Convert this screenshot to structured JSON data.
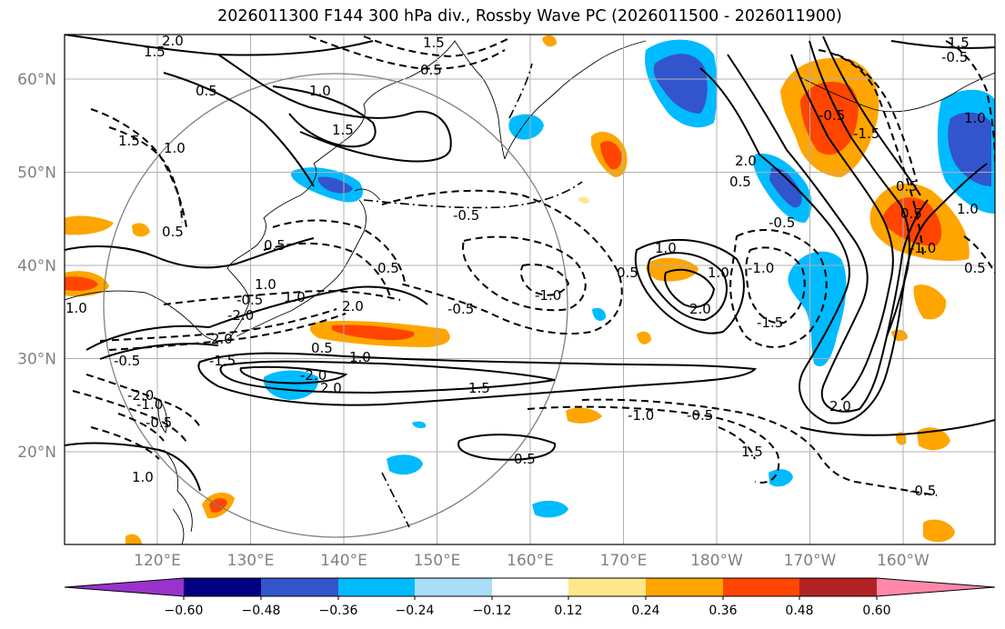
{
  "title": "2026011300 F144 300 hPa div., Rossby Wave PC (2026011500 - 2026011900)",
  "map": {
    "lon_labels": [
      "120°E",
      "130°E",
      "140°E",
      "150°E",
      "160°E",
      "170°E",
      "180°W",
      "170°W",
      "160°W"
    ],
    "lat_labels": [
      "60°N",
      "50°N",
      "40°N",
      "30°N",
      "20°N"
    ],
    "contour_labels": [
      "2.0",
      "1.5",
      "1.5",
      "0.5",
      "1.0",
      "0.5",
      "1.5",
      "1.5",
      "1.0",
      "1.5",
      "0.5",
      "0.5",
      "0.5",
      "1.0",
      "1.0",
      "2.0",
      "2.0",
      "0.5",
      "1.0",
      "-0.5",
      "0.5",
      "-1.0",
      "-0.5",
      "1.0",
      "2.0",
      "1.0",
      "-1.5",
      "-1.0",
      "-0.5",
      "0.5",
      "1.0",
      "-1.0",
      "2.0",
      "-0.5",
      "1.5",
      "2.0",
      "-0.5",
      "-2.0",
      "0.5",
      "-0.5",
      "1.5",
      "1.0",
      "-2.0",
      "-1.0",
      "-0.5",
      "-1.0",
      "1.0",
      "0.5",
      "-2.0",
      "1.0",
      "-0.5",
      "0.5",
      "-0.5",
      "-1.5",
      "-1.5",
      "-0.5",
      "2.0",
      "0.5"
    ]
  },
  "colorbar": {
    "ticks": [
      "−0.60",
      "−0.48",
      "−0.36",
      "−0.24",
      "−0.12",
      "0.12",
      "0.24",
      "0.36",
      "0.48",
      "0.60"
    ],
    "colors": {
      "under": "#9933cc",
      "bins": [
        "#000080",
        "#3355cc",
        "#00bbff",
        "#aaddf8",
        "#ffffff",
        "#ffe88a",
        "#ffa500",
        "#ff4500",
        "#b22222"
      ],
      "over": "#ff88aa"
    }
  }
}
